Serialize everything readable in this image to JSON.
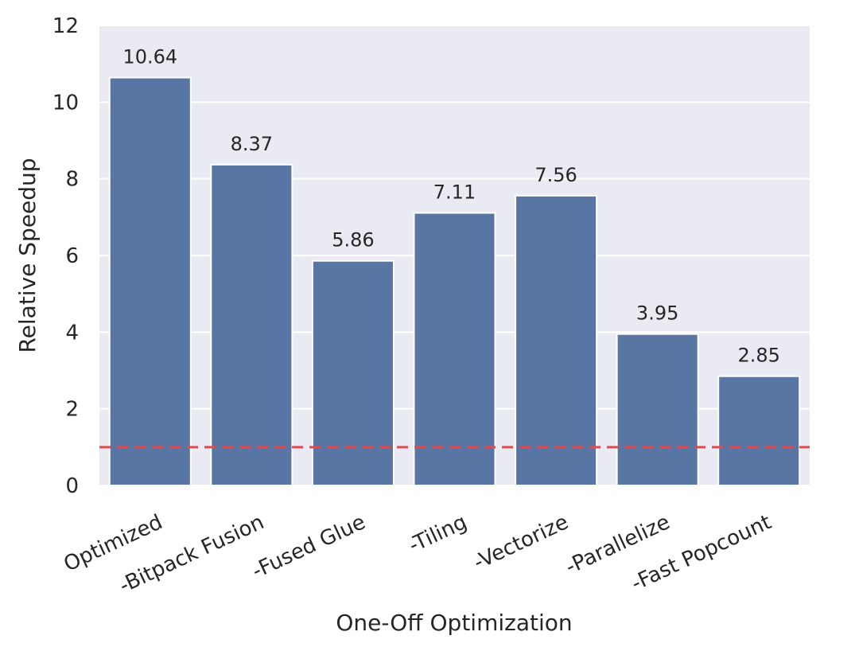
{
  "chart_data": {
    "type": "bar",
    "categories": [
      "Optimized",
      "-Bitpack Fusion",
      "-Fused Glue",
      "-Tiling",
      "-Vectorize",
      "-Parallelize",
      "-Fast Popcount"
    ],
    "values": [
      10.64,
      8.37,
      5.86,
      7.11,
      7.56,
      3.95,
      2.85
    ],
    "value_labels": [
      "10.64",
      "8.37",
      "5.86",
      "7.11",
      "7.56",
      "3.95",
      "2.85"
    ],
    "xlabel": "One-Off Optimization",
    "ylabel": "Relative Speedup",
    "ylim": [
      0,
      12
    ],
    "yticks": [
      0,
      2,
      4,
      6,
      8,
      10,
      12
    ],
    "ytick_labels": [
      "0",
      "2",
      "4",
      "6",
      "8",
      "10",
      "12"
    ],
    "reference_line": {
      "y": 1,
      "style": "dashed"
    },
    "grid": true,
    "colors": {
      "bar": "#5975a4",
      "reference_line": "#dd4c4f",
      "plot_background": "#eaeaf2",
      "grid": "#ffffff"
    }
  }
}
